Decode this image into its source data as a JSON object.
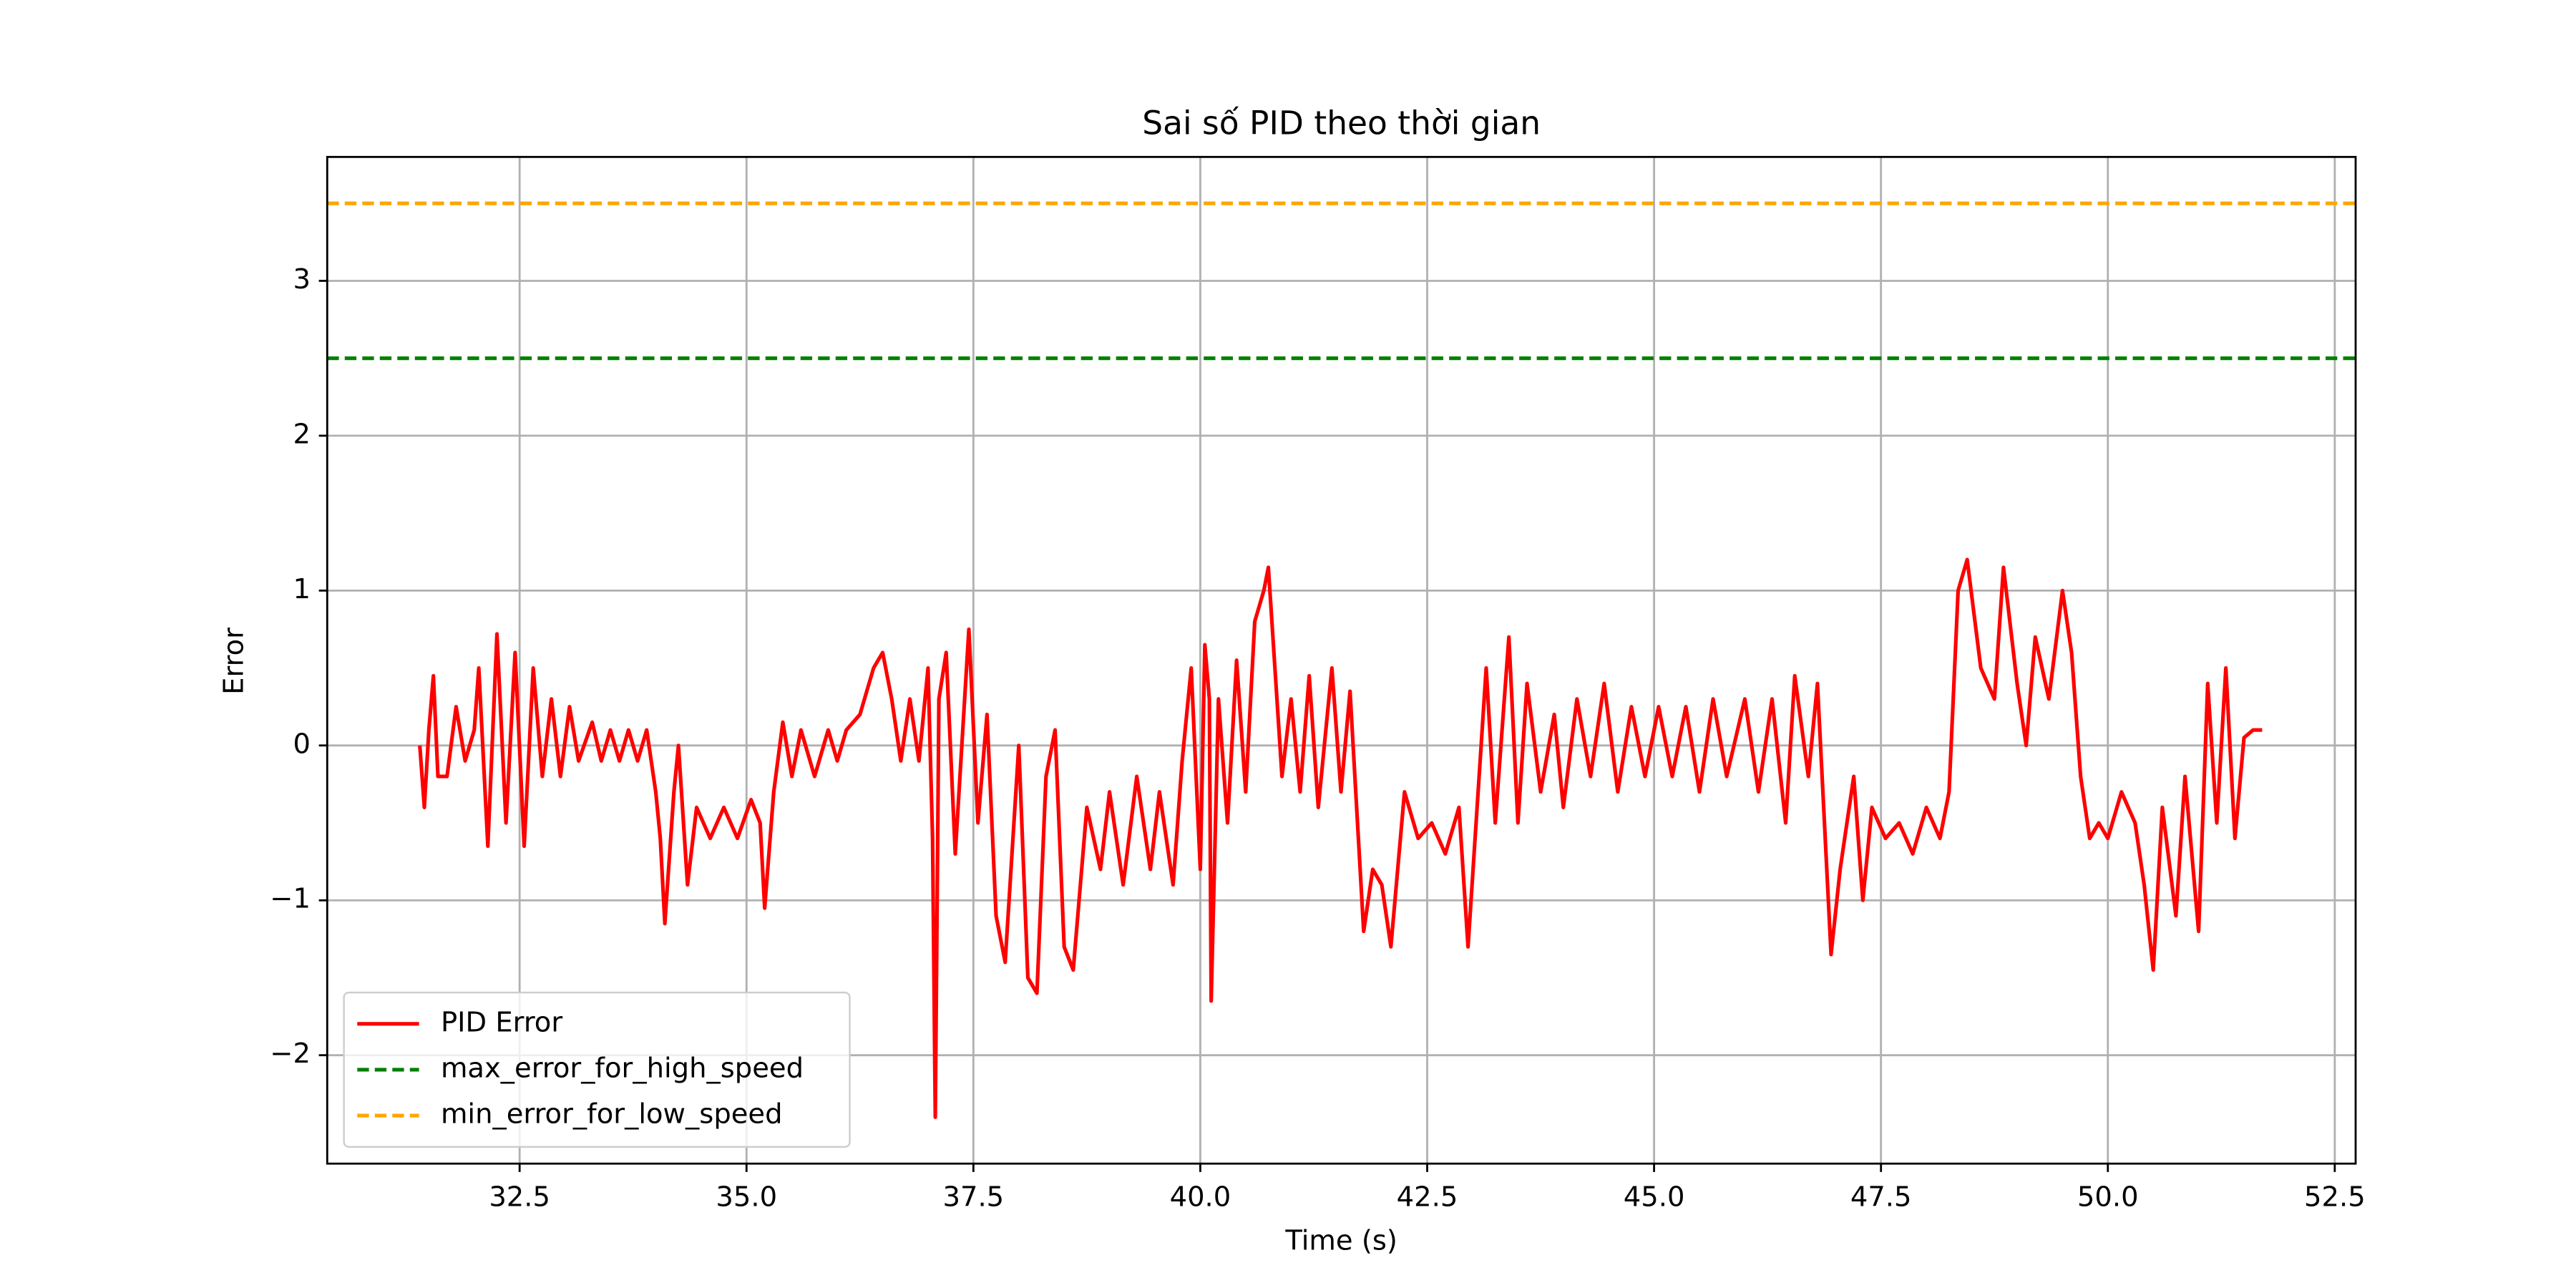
{
  "chart_data": {
    "type": "line",
    "title": "Sai số PID theo thời gian",
    "xlabel": "Time (s)",
    "ylabel": "Error",
    "xlim": [
      30.38,
      52.73
    ],
    "ylim": [
      -2.7,
      3.8
    ],
    "xticks": [
      {
        "value": 32.5,
        "label": "32.5"
      },
      {
        "value": 35,
        "label": "35.0"
      },
      {
        "value": 37.5,
        "label": "37.5"
      },
      {
        "value": 40,
        "label": "40.0"
      },
      {
        "value": 42.5,
        "label": "42.5"
      },
      {
        "value": 45,
        "label": "45.0"
      },
      {
        "value": 47.5,
        "label": "47.5"
      },
      {
        "value": 50,
        "label": "50.0"
      },
      {
        "value": 52.5,
        "label": "52.5"
      }
    ],
    "yticks": [
      {
        "value": -2,
        "label": "−2"
      },
      {
        "value": -1,
        "label": "−1"
      },
      0,
      1,
      2,
      3
    ],
    "grid": true,
    "legend": "lower left",
    "series": [
      {
        "name": "PID Error",
        "color": "#ff0000",
        "x": [
          31.4,
          31.45,
          31.5,
          31.55,
          31.6,
          31.7,
          31.8,
          31.9,
          32.0,
          32.05,
          32.15,
          32.25,
          32.35,
          32.45,
          32.55,
          32.65,
          32.75,
          32.85,
          32.95,
          33.05,
          33.15,
          33.3,
          33.4,
          33.5,
          33.6,
          33.7,
          33.8,
          33.9,
          34.0,
          34.05,
          34.1,
          34.2,
          34.25,
          34.35,
          34.45,
          34.6,
          34.75,
          34.9,
          35.05,
          35.15,
          35.2,
          35.3,
          35.4,
          35.5,
          35.6,
          35.75,
          35.9,
          36.0,
          36.1,
          36.25,
          36.4,
          36.5,
          36.6,
          36.7,
          36.8,
          36.9,
          37.0,
          37.05,
          37.08,
          37.12,
          37.2,
          37.3,
          37.45,
          37.55,
          37.65,
          37.75,
          37.85,
          38.0,
          38.1,
          38.2,
          38.3,
          38.4,
          38.5,
          38.6,
          38.75,
          38.9,
          39.0,
          39.15,
          39.3,
          39.45,
          39.55,
          39.7,
          39.8,
          39.9,
          40.0,
          40.05,
          40.1,
          40.12,
          40.2,
          40.3,
          40.4,
          40.5,
          40.6,
          40.7,
          40.75,
          40.8,
          40.9,
          41.0,
          41.1,
          41.2,
          41.3,
          41.45,
          41.55,
          41.65,
          41.8,
          41.9,
          42.0,
          42.1,
          42.25,
          42.4,
          42.55,
          42.7,
          42.85,
          42.95,
          43.05,
          43.15,
          43.25,
          43.4,
          43.5,
          43.6,
          43.75,
          43.9,
          44.0,
          44.15,
          44.3,
          44.45,
          44.6,
          44.75,
          44.9,
          45.05,
          45.2,
          45.35,
          45.5,
          45.65,
          45.8,
          46.0,
          46.15,
          46.3,
          46.45,
          46.55,
          46.7,
          46.8,
          46.95,
          47.05,
          47.2,
          47.3,
          47.4,
          47.55,
          47.7,
          47.85,
          48.0,
          48.15,
          48.25,
          48.35,
          48.45,
          48.6,
          48.75,
          48.85,
          49.0,
          49.1,
          49.2,
          49.35,
          49.5,
          49.6,
          49.7,
          49.8,
          49.9,
          50.0,
          50.15,
          50.3,
          50.4,
          50.5,
          50.6,
          50.75,
          50.85,
          51.0,
          51.1,
          51.2,
          51.3,
          51.4,
          51.5,
          51.6,
          51.7
        ],
        "values": [
          0.0,
          -0.4,
          0.1,
          0.45,
          -0.2,
          -0.2,
          0.25,
          -0.1,
          0.1,
          0.5,
          -0.65,
          0.72,
          -0.5,
          0.6,
          -0.65,
          0.5,
          -0.2,
          0.3,
          -0.2,
          0.25,
          -0.1,
          0.15,
          -0.1,
          0.1,
          -0.1,
          0.1,
          -0.1,
          0.1,
          -0.3,
          -0.6,
          -1.15,
          -0.3,
          0.0,
          -0.9,
          -0.4,
          -0.6,
          -0.4,
          -0.6,
          -0.35,
          -0.5,
          -1.05,
          -0.3,
          0.15,
          -0.2,
          0.1,
          -0.2,
          0.1,
          -0.1,
          0.1,
          0.2,
          0.5,
          0.6,
          0.3,
          -0.1,
          0.3,
          -0.1,
          0.5,
          -0.6,
          -2.4,
          0.3,
          0.6,
          -0.7,
          0.75,
          -0.5,
          0.2,
          -1.1,
          -1.4,
          0.0,
          -1.5,
          -1.6,
          -0.2,
          0.1,
          -1.3,
          -1.45,
          -0.4,
          -0.8,
          -0.3,
          -0.9,
          -0.2,
          -0.8,
          -0.3,
          -0.9,
          -0.1,
          0.5,
          -0.8,
          0.65,
          0.3,
          -1.65,
          0.3,
          -0.5,
          0.55,
          -0.3,
          0.8,
          1.0,
          1.15,
          0.7,
          -0.2,
          0.3,
          -0.3,
          0.45,
          -0.4,
          0.5,
          -0.3,
          0.35,
          -1.2,
          -0.8,
          -0.9,
          -1.3,
          -0.3,
          -0.6,
          -0.5,
          -0.7,
          -0.4,
          -1.3,
          -0.4,
          0.5,
          -0.5,
          0.7,
          -0.5,
          0.4,
          -0.3,
          0.2,
          -0.4,
          0.3,
          -0.2,
          0.4,
          -0.3,
          0.25,
          -0.2,
          0.25,
          -0.2,
          0.25,
          -0.3,
          0.3,
          -0.2,
          0.3,
          -0.3,
          0.3,
          -0.5,
          0.45,
          -0.2,
          0.4,
          -1.35,
          -0.8,
          -0.2,
          -1.0,
          -0.4,
          -0.6,
          -0.5,
          -0.7,
          -0.4,
          -0.6,
          -0.3,
          1.0,
          1.2,
          0.5,
          0.3,
          1.15,
          0.4,
          0.0,
          0.7,
          0.3,
          1.0,
          0.6,
          -0.2,
          -0.6,
          -0.5,
          -0.6,
          -0.3,
          -0.5,
          -0.9,
          -1.45,
          -0.4,
          -1.1,
          -0.2,
          -1.2,
          0.4,
          -0.5,
          0.5,
          -0.6,
          0.05,
          0.1,
          0.1
        ]
      },
      {
        "name": "max_error_for_high_speed",
        "color": "#008000",
        "value": 2.5,
        "dashed": true
      },
      {
        "name": "min_error_for_low_speed",
        "color": "#ffa500",
        "value": 3.5,
        "dashed": true
      }
    ]
  }
}
